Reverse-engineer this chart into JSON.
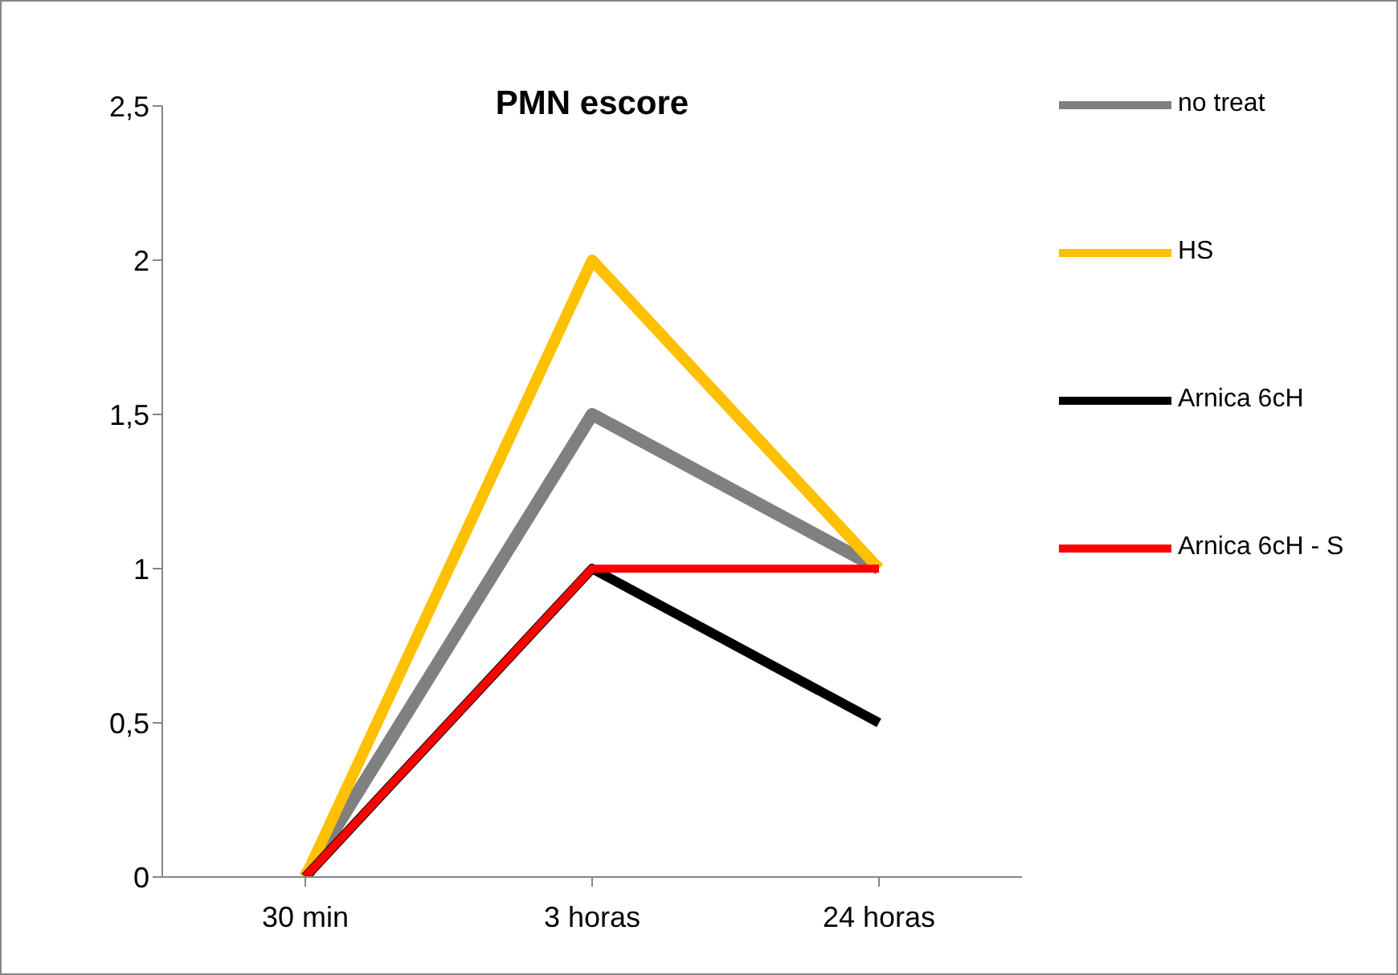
{
  "chart_data": {
    "type": "line",
    "title": "PMN escore",
    "categories": [
      "30 min",
      "3 horas",
      "24 horas"
    ],
    "series": [
      {
        "name": "no treat",
        "color": "#808080",
        "values": [
          0,
          1.5,
          1
        ]
      },
      {
        "name": "HS",
        "color": "#ffc000",
        "values": [
          0,
          2,
          1
        ]
      },
      {
        "name": "Arnica 6cH",
        "color": "#000000",
        "values": [
          0,
          1,
          0.5
        ]
      },
      {
        "name": "Arnica 6cH - S",
        "color": "#ff0000",
        "values": [
          0,
          1,
          1
        ]
      }
    ],
    "ylim": [
      0,
      2.5
    ],
    "yticks": [
      0,
      {
        "value": 0.5,
        "label": "0,5"
      },
      1,
      {
        "value": 1.5,
        "label": "1,5"
      },
      2,
      {
        "value": 2.5,
        "label": "2,5"
      }
    ],
    "grid": false,
    "legend": "top right",
    "marker": "none",
    "line_style": "solid"
  }
}
